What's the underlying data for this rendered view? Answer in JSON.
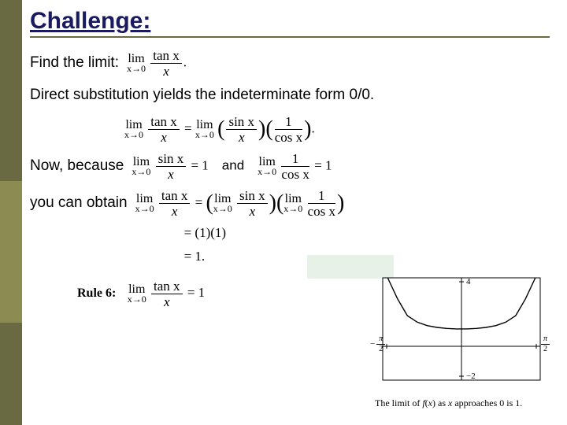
{
  "title": "Challenge:",
  "line1_prefix": "Find the limit:",
  "line2": "Direct substitution yields the indeterminate form 0/0.",
  "line3_prefix": "Now, because",
  "line4_prefix": "you can obtain",
  "rule_label": "Rule 6:",
  "math": {
    "lim_label": "lim",
    "lim_sub": "x→0",
    "tanx": "tan x",
    "sinx": "sin x",
    "cosx": "cos x",
    "x": "x",
    "one": "1",
    "and": "and",
    "eq": "=",
    "dot": ".",
    "open": "(",
    "close": ")",
    "result_11": "= (1)(1)",
    "result_1": "= 1."
  },
  "graph": {
    "caption": "The limit of f(x) as x approaches 0 is 1.",
    "y_top": "4",
    "y_bot": "−2",
    "x_left_num": "π",
    "x_left_den": "2",
    "x_right_num": "π",
    "x_right_den": "2",
    "neg": "−",
    "curve_color": "#000000",
    "axis_color": "#000000",
    "background": "#ffffff",
    "xlim": [
      -1.6,
      1.6
    ],
    "ylim": [
      -2,
      4
    ],
    "curve_points": [
      [
        -1.5,
        14.1
      ],
      [
        -1.3,
        2.77
      ],
      [
        -1.1,
        1.78
      ],
      [
        -0.9,
        1.4
      ],
      [
        -0.7,
        1.2
      ],
      [
        -0.5,
        1.09
      ],
      [
        -0.3,
        1.03
      ],
      [
        -0.1,
        1.003
      ],
      [
        0.1,
        1.003
      ],
      [
        0.3,
        1.03
      ],
      [
        0.5,
        1.09
      ],
      [
        0.7,
        1.2
      ],
      [
        0.9,
        1.4
      ],
      [
        1.1,
        1.78
      ],
      [
        1.3,
        2.77
      ],
      [
        1.5,
        14.1
      ]
    ]
  },
  "colors": {
    "title": "#1a1a60",
    "sidebar": "#6a6a42",
    "accent": "#8b8b52",
    "highlight": "#d8e8d8"
  }
}
